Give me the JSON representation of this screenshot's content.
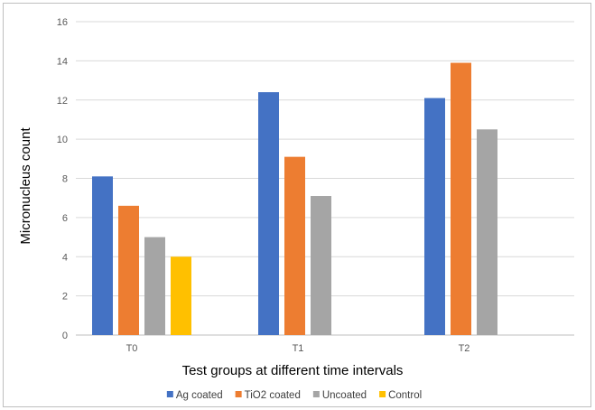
{
  "chart_data": {
    "type": "bar",
    "title": "",
    "xlabel": "Test groups at different time intervals",
    "ylabel": "Micronucleus count",
    "ylim": [
      0,
      16
    ],
    "yticks": [
      0,
      2,
      4,
      6,
      8,
      10,
      12,
      14,
      16
    ],
    "grid": true,
    "legend_position": "bottom",
    "categories": [
      "T0",
      "T1",
      "T2"
    ],
    "series": [
      {
        "name": "Ag coated",
        "color": "#4472C4",
        "values": [
          8.1,
          12.4,
          12.1
        ]
      },
      {
        "name": "TiO2 coated",
        "color": "#ED7D31",
        "values": [
          6.6,
          9.1,
          13.9
        ]
      },
      {
        "name": "Uncoated",
        "color": "#A5A5A5",
        "values": [
          5.0,
          7.1,
          10.5
        ]
      },
      {
        "name": "Control",
        "color": "#FFC000",
        "values": [
          4.0,
          null,
          null
        ]
      }
    ]
  }
}
